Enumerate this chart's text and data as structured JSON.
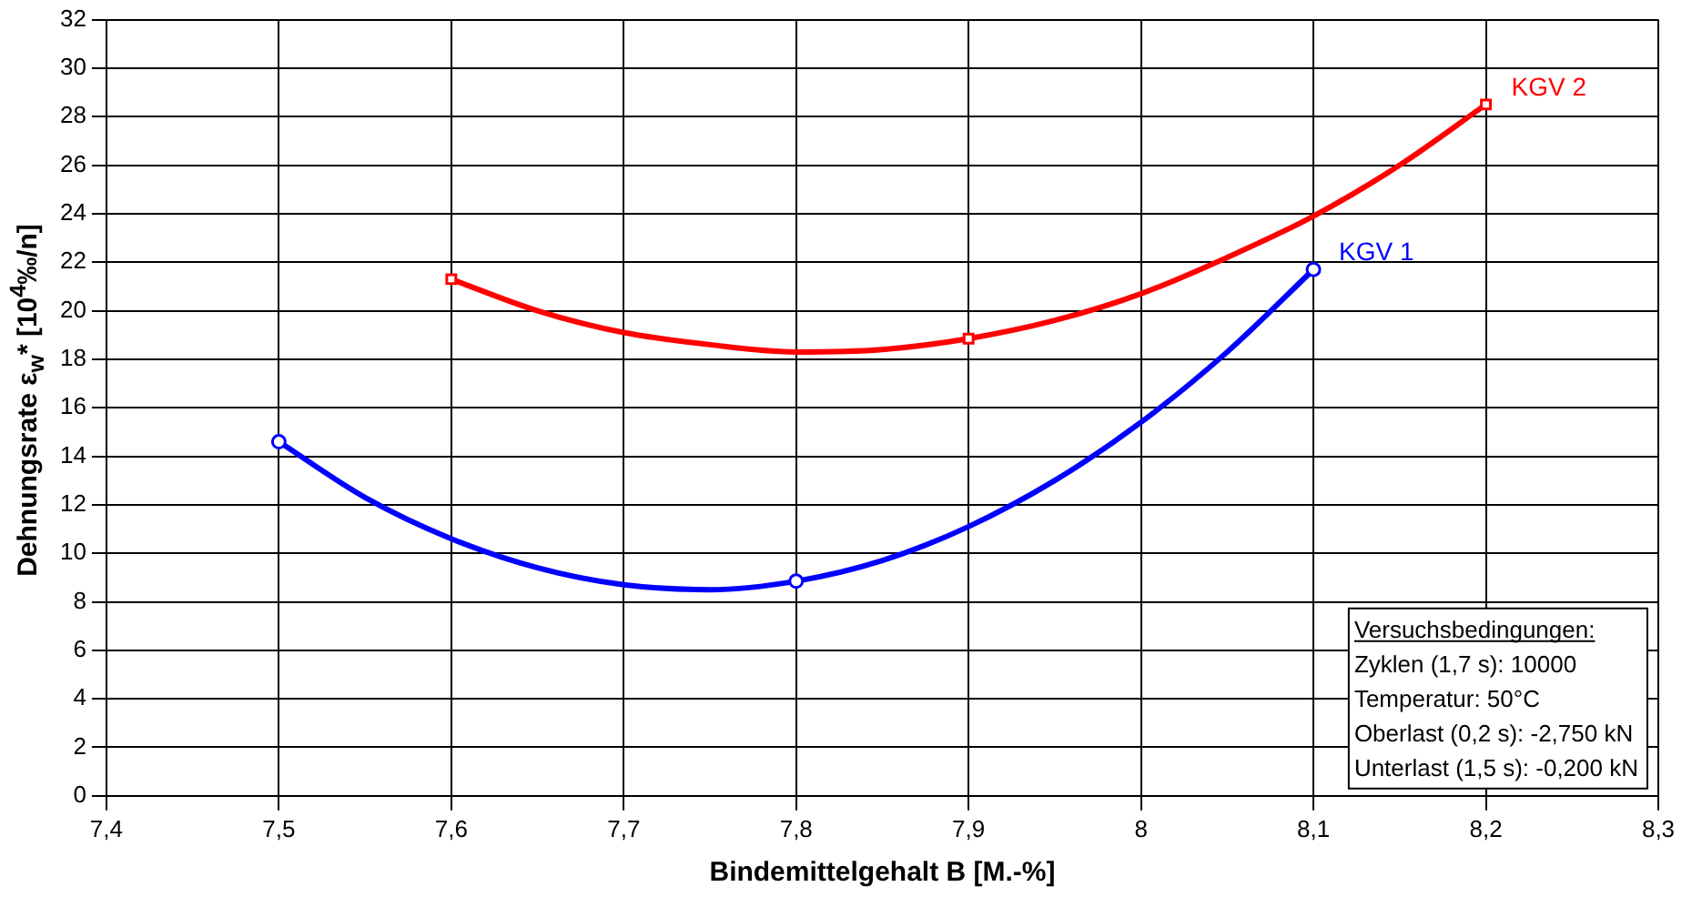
{
  "chart_data": {
    "type": "line",
    "xlabel": "Bindemittelgehalt B [M.-%]",
    "ylabel": "Dehnungsrate ε$_{w}$* [10$^{4}$‰/n]",
    "xlim": [
      7.4,
      8.3
    ],
    "xticks": [
      {
        "value": 7.4,
        "label": "7,4"
      },
      {
        "value": 7.5,
        "label": "7,5"
      },
      {
        "value": 7.6,
        "label": "7,6"
      },
      {
        "value": 7.7,
        "label": "7,7"
      },
      {
        "value": 7.8,
        "label": "7,8"
      },
      {
        "value": 7.9,
        "label": "7,9"
      },
      8,
      {
        "value": 8.1,
        "label": "8,1"
      },
      {
        "value": 8.2,
        "label": "8,2"
      },
      {
        "value": 8.3,
        "label": "8,3"
      }
    ],
    "ylim": [
      0,
      32
    ],
    "yticks": [
      0,
      2,
      4,
      6,
      8,
      10,
      12,
      14,
      16,
      18,
      20,
      22,
      24,
      26,
      28,
      30,
      32
    ],
    "grid": true,
    "legend": false,
    "series": [
      {
        "name": "KGV 1",
        "type": "line",
        "color": "#0000ff",
        "marker": "none",
        "x": [
          7.5,
          7.55,
          7.6,
          7.65,
          7.7,
          7.75,
          7.8,
          7.85,
          7.9,
          7.95,
          8.0,
          8.05,
          8.1
        ],
        "values": [
          14.6,
          12.3,
          10.6,
          9.4,
          8.7,
          8.5,
          8.85,
          9.7,
          11.1,
          13.0,
          15.4,
          18.3,
          21.7
        ]
      },
      {
        "type": "scatter",
        "color": "#0000ff",
        "marker": "circle",
        "x": [
          7.5,
          7.8,
          8.1
        ],
        "values": [
          14.6,
          8.85,
          21.7
        ]
      },
      {
        "name": "KGV 2",
        "type": "line",
        "color": "#ff0000",
        "marker": "none",
        "x": [
          7.6,
          7.65,
          7.7,
          7.75,
          7.8,
          7.85,
          7.9,
          7.95,
          8.0,
          8.05,
          8.1,
          8.15,
          8.2
        ],
        "values": [
          21.3,
          20.0,
          19.1,
          18.6,
          18.3,
          18.4,
          18.85,
          19.6,
          20.7,
          22.2,
          23.9,
          26.0,
          28.5
        ]
      },
      {
        "type": "scatter",
        "color": "#ff0000",
        "marker": "square",
        "x": [
          7.6,
          7.9,
          8.2
        ],
        "values": [
          21.3,
          18.85,
          28.5
        ]
      }
    ],
    "annotations": [
      "Versuchsbedingungen:",
      "Zyklen (1,7 s): 10000",
      "Temperatur: 50°C",
      "Oberlast (0,2 s): -2,750 kN",
      "Unterlast (1,5 s): -0,200 kN"
    ]
  }
}
